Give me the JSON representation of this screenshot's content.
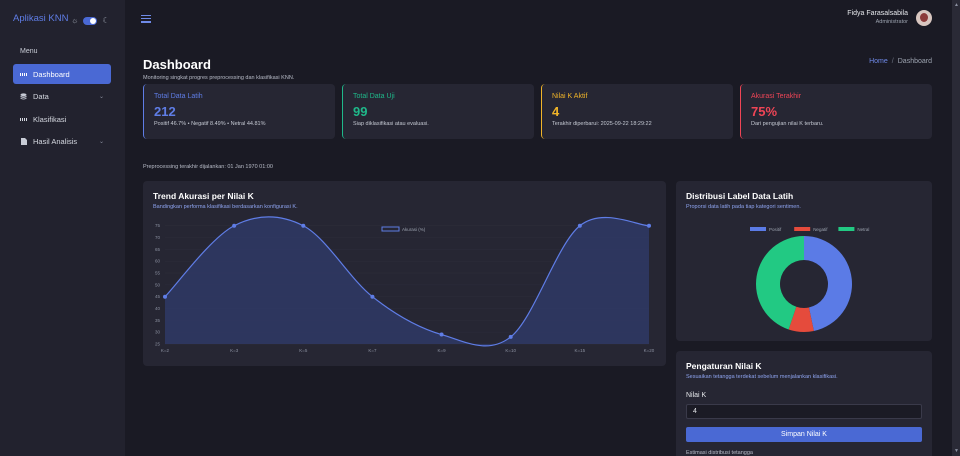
{
  "app": {
    "brand": "Aplikasi KNN"
  },
  "sidebar": {
    "menu_label": "Menu",
    "items": [
      {
        "label": "Dashboard",
        "active": true,
        "icon": "grid-icon"
      },
      {
        "label": "Data",
        "icon": "database-icon",
        "has_children": true
      },
      {
        "label": "Klasifikasi",
        "icon": "grid-icon"
      },
      {
        "label": "Hasil Analisis",
        "icon": "document-icon",
        "has_children": true
      }
    ]
  },
  "user": {
    "name": "Fidya Farasalsabila",
    "role": "Administrator"
  },
  "page": {
    "title": "Dashboard",
    "subtitle": "Monitoring singkat progres preprocessing dan klasifikasi KNN."
  },
  "breadcrumb": {
    "home": "Home",
    "separator": "/",
    "current": "Dashboard"
  },
  "stats": [
    {
      "title": "Total Data Latih",
      "value": "212",
      "desc": "Positif 46.7% • Negatif 8.49% • Netral 44.81%",
      "color": "#5f7de6"
    },
    {
      "title": "Total Data Uji",
      "value": "99",
      "desc": "Siap diklasifikasi atau evaluasi.",
      "color": "#1fb88a"
    },
    {
      "title": "Nilai K Aktif",
      "value": "4",
      "desc": "Terakhir diperbarui: 2025-09-22 18:29:22",
      "color": "#f0b429"
    },
    {
      "title": "Akurasi Terakhir",
      "value": "75%",
      "desc": "Dari pengujian nilai K terbaru.",
      "color": "#ef4556"
    }
  ],
  "info_line": "Preprocessing terakhir dijalankan: 01 Jan 1970 01:00",
  "trend_panel": {
    "title": "Trend Akurasi per Nilai K",
    "subtitle": "Bandingkan performa klasifikasi berdasarkan konfigurasi K."
  },
  "dist_panel": {
    "title": "Distribusi Label Data Latih",
    "subtitle": "Proporsi data latih pada tiap kategori sentimen."
  },
  "settings": {
    "title": "Pengaturan Nilai K",
    "subtitle": "Sesuaikan tetangga terdekat sebelum menjalankan klasifikasi.",
    "field_label": "Nilai K",
    "field_value": "4",
    "button": "Simpan Nilai K",
    "cut_text": "Estimasi distribusi tetangga"
  },
  "chart_data": [
    {
      "type": "area",
      "series": [
        {
          "name": "Akurasi (%)",
          "values": [
            45,
            75,
            75,
            45,
            29,
            28,
            75,
            75
          ]
        }
      ],
      "categories": [
        "K=2",
        "K=3",
        "K=5",
        "K=7",
        "K=9",
        "K=10",
        "K=15",
        "K=20"
      ],
      "yticks": [
        25,
        30,
        35,
        40,
        45,
        50,
        55,
        60,
        65,
        70,
        75
      ],
      "ylim": [
        25,
        77
      ],
      "color": "#5f7de6",
      "legend": "top-center"
    },
    {
      "type": "pie",
      "categories": [
        "Positif",
        "Negatif",
        "Netral"
      ],
      "values": [
        46.7,
        8.49,
        44.81
      ],
      "colors": [
        "#5b7be6",
        "#e54b3c",
        "#22c983"
      ],
      "legend": "top-center"
    }
  ]
}
